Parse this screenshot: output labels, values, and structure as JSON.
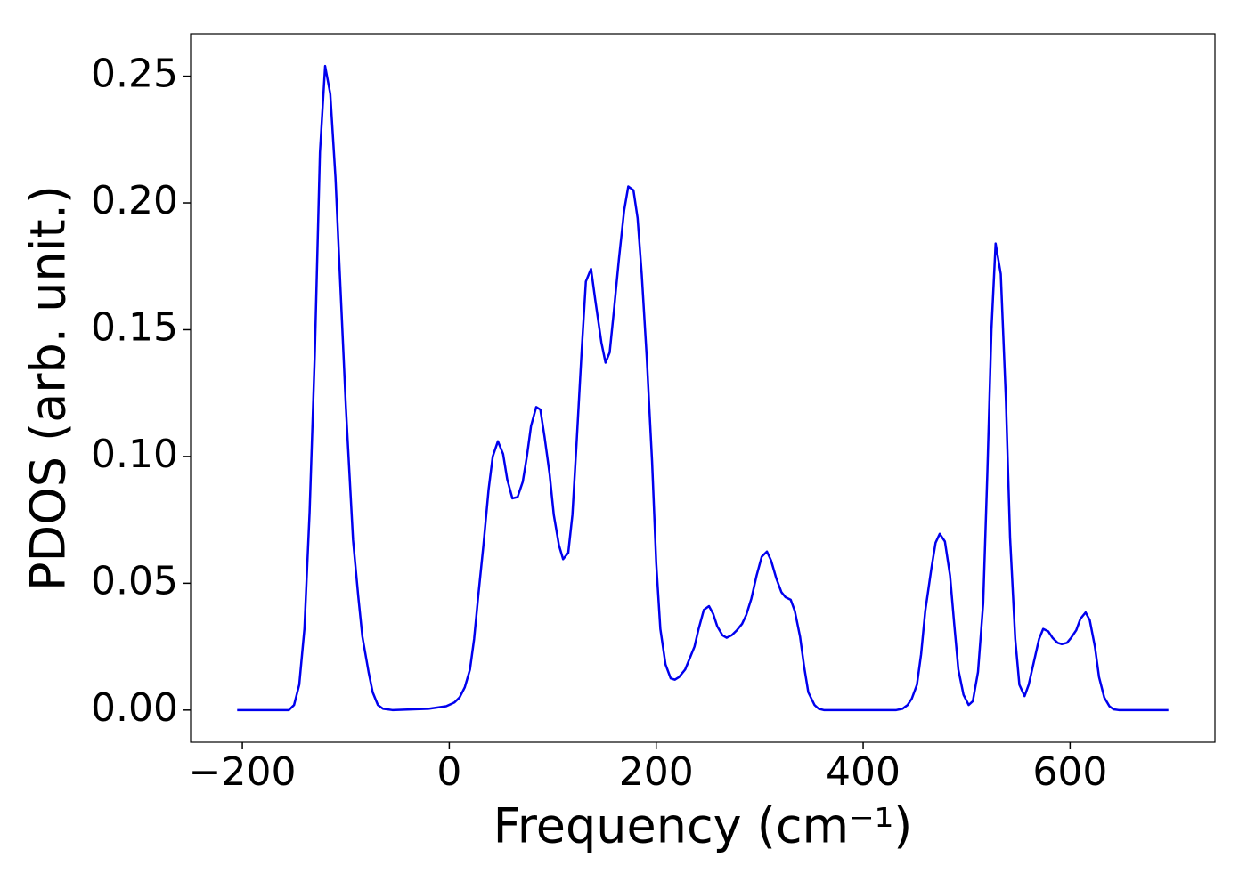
{
  "chart_data": {
    "type": "line",
    "x_label": "Frequency (cm⁻¹)",
    "y_label": "PDOS (arb. unit.)",
    "xlim": [
      -250,
      740
    ],
    "ylim": [
      -0.0127,
      0.2667
    ],
    "xticks": [
      {
        "value": -200,
        "label": "−200"
      },
      0,
      200,
      400,
      600
    ],
    "yticks": [
      {
        "value": 0,
        "label": "0.00"
      },
      {
        "value": 0.05,
        "label": "0.05"
      },
      {
        "value": 0.1,
        "label": "0.10"
      },
      {
        "value": 0.15,
        "label": "0.15"
      },
      {
        "value": 0.2,
        "label": "0.20"
      },
      {
        "value": 0.25,
        "label": "0.25"
      }
    ],
    "series": [
      {
        "color": "#0000ee",
        "x": [
          -205,
          -155,
          -150,
          -145,
          -140,
          -135,
          -130,
          -125,
          -120,
          -115,
          -110,
          -105,
          -100,
          -93,
          -88,
          -84,
          -78,
          -74,
          -69,
          -64,
          -55,
          -20,
          -3,
          5,
          10,
          15,
          20,
          24,
          28,
          33,
          38,
          42,
          47,
          52,
          56,
          61,
          66,
          71,
          75,
          79,
          84,
          88,
          92,
          97,
          101,
          106,
          110,
          115,
          119,
          123,
          128,
          132,
          137,
          141,
          147,
          151,
          155,
          159,
          164,
          169,
          173,
          178,
          182,
          186,
          191,
          196,
          200,
          204,
          209,
          214,
          218,
          222,
          228,
          232,
          237,
          241,
          246,
          251,
          255,
          259,
          264,
          268,
          273,
          278,
          283,
          287,
          292,
          297,
          302,
          307,
          311,
          316,
          321,
          325,
          330,
          334,
          339,
          343,
          347,
          353,
          357,
          362,
          432,
          438,
          443,
          447,
          452,
          456,
          460,
          466,
          470,
          474,
          479,
          484,
          488,
          492,
          497,
          502,
          506,
          511,
          516,
          520,
          524,
          528,
          533,
          538,
          542,
          547,
          551,
          556,
          560,
          565,
          570,
          574,
          579,
          583,
          588,
          592,
          597,
          601,
          606,
          610,
          615,
          619,
          624,
          628,
          633,
          638,
          642,
          647,
          695
        ],
        "values": [
          0,
          0,
          0.002,
          0.01,
          0.032,
          0.078,
          0.14,
          0.22,
          0.254,
          0.243,
          0.21,
          0.165,
          0.12,
          0.067,
          0.045,
          0.029,
          0.015,
          0.007,
          0.002,
          0.0005,
          0,
          0.0005,
          0.0015,
          0.003,
          0.005,
          0.009,
          0.016,
          0.028,
          0.045,
          0.065,
          0.087,
          0.1,
          0.106,
          0.101,
          0.091,
          0.0835,
          0.084,
          0.09,
          0.1,
          0.112,
          0.1195,
          0.1185,
          0.108,
          0.093,
          0.077,
          0.065,
          0.0595,
          0.062,
          0.077,
          0.105,
          0.142,
          0.169,
          0.174,
          0.162,
          0.145,
          0.137,
          0.141,
          0.157,
          0.178,
          0.197,
          0.2065,
          0.205,
          0.194,
          0.172,
          0.138,
          0.098,
          0.058,
          0.032,
          0.018,
          0.0125,
          0.012,
          0.013,
          0.016,
          0.02,
          0.025,
          0.032,
          0.0395,
          0.041,
          0.038,
          0.033,
          0.0295,
          0.0285,
          0.0295,
          0.0315,
          0.034,
          0.0375,
          0.044,
          0.053,
          0.0605,
          0.0625,
          0.059,
          0.052,
          0.0465,
          0.0445,
          0.0435,
          0.039,
          0.029,
          0.017,
          0.007,
          0.002,
          0.0005,
          0,
          0,
          0.0005,
          0.002,
          0.0045,
          0.01,
          0.022,
          0.039,
          0.056,
          0.066,
          0.0695,
          0.0665,
          0.053,
          0.034,
          0.016,
          0.006,
          0.002,
          0.0035,
          0.015,
          0.042,
          0.093,
          0.15,
          0.184,
          0.172,
          0.122,
          0.068,
          0.028,
          0.01,
          0.0055,
          0.01,
          0.019,
          0.028,
          0.032,
          0.031,
          0.0285,
          0.0265,
          0.026,
          0.0265,
          0.0285,
          0.0315,
          0.036,
          0.0385,
          0.0355,
          0.025,
          0.013,
          0.005,
          0.0015,
          0.0003,
          0,
          0
        ]
      }
    ]
  }
}
